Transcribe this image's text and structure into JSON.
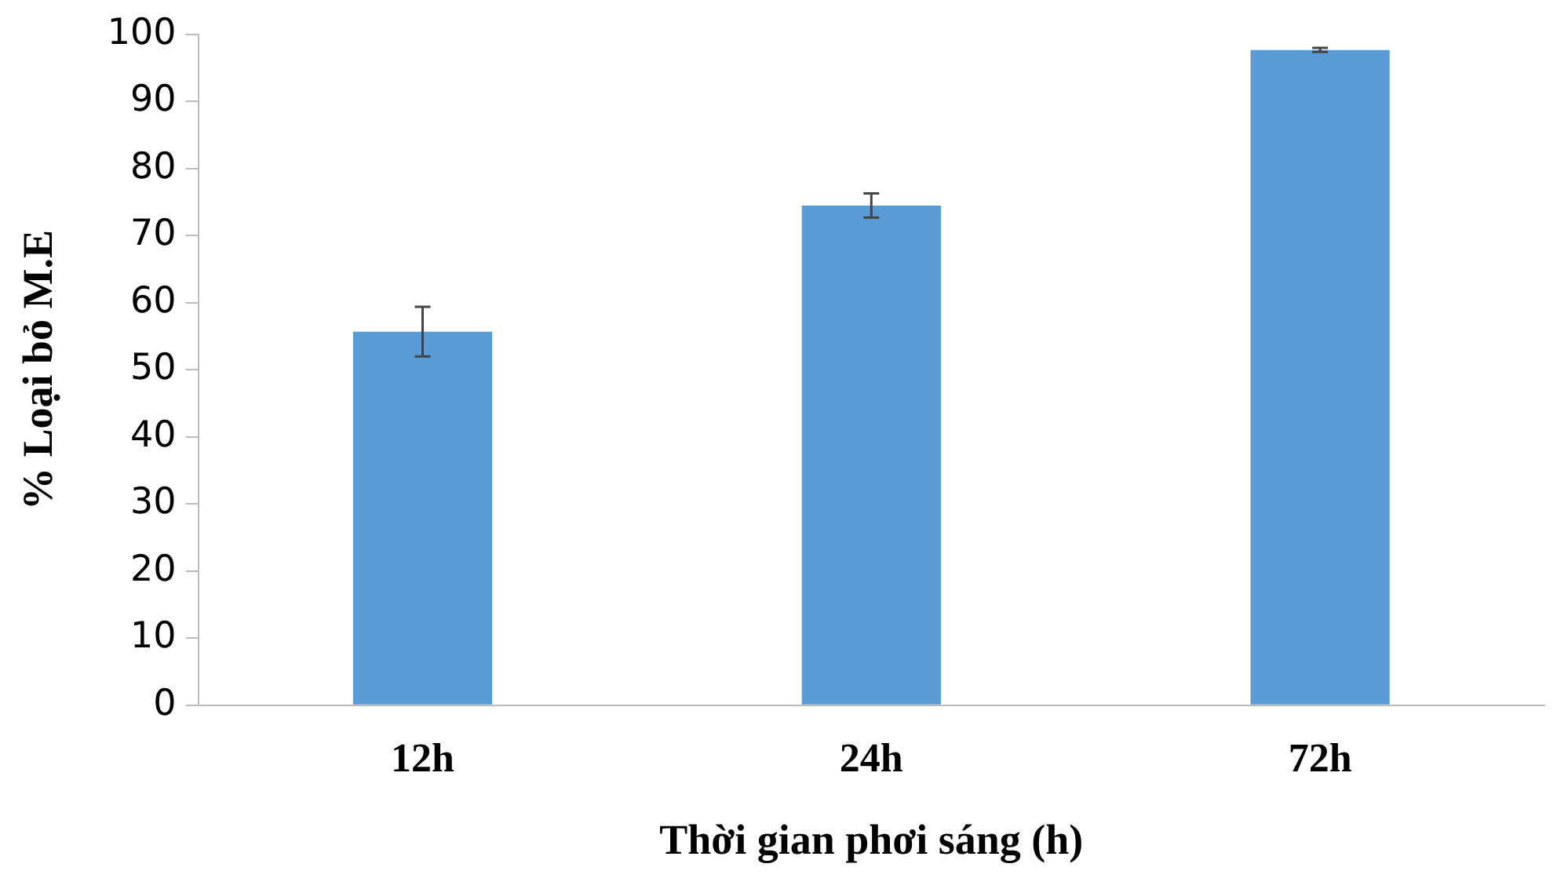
{
  "chart_data": {
    "type": "bar",
    "xlabel": "Thời gian phơi sáng (h)",
    "ylabel": "% Loại bỏ M.E",
    "categories": [
      "12h",
      "24h",
      "72h"
    ],
    "values": [
      55.7,
      74.5,
      97.7
    ],
    "errors": [
      3.7,
      1.8,
      0.3
    ],
    "color": "#5b9bd5",
    "ylim": [
      0,
      100
    ],
    "yticks": [
      0,
      10,
      20,
      30,
      40,
      50,
      60,
      70,
      80,
      90,
      100
    ],
    "grid": false,
    "legend": false
  }
}
